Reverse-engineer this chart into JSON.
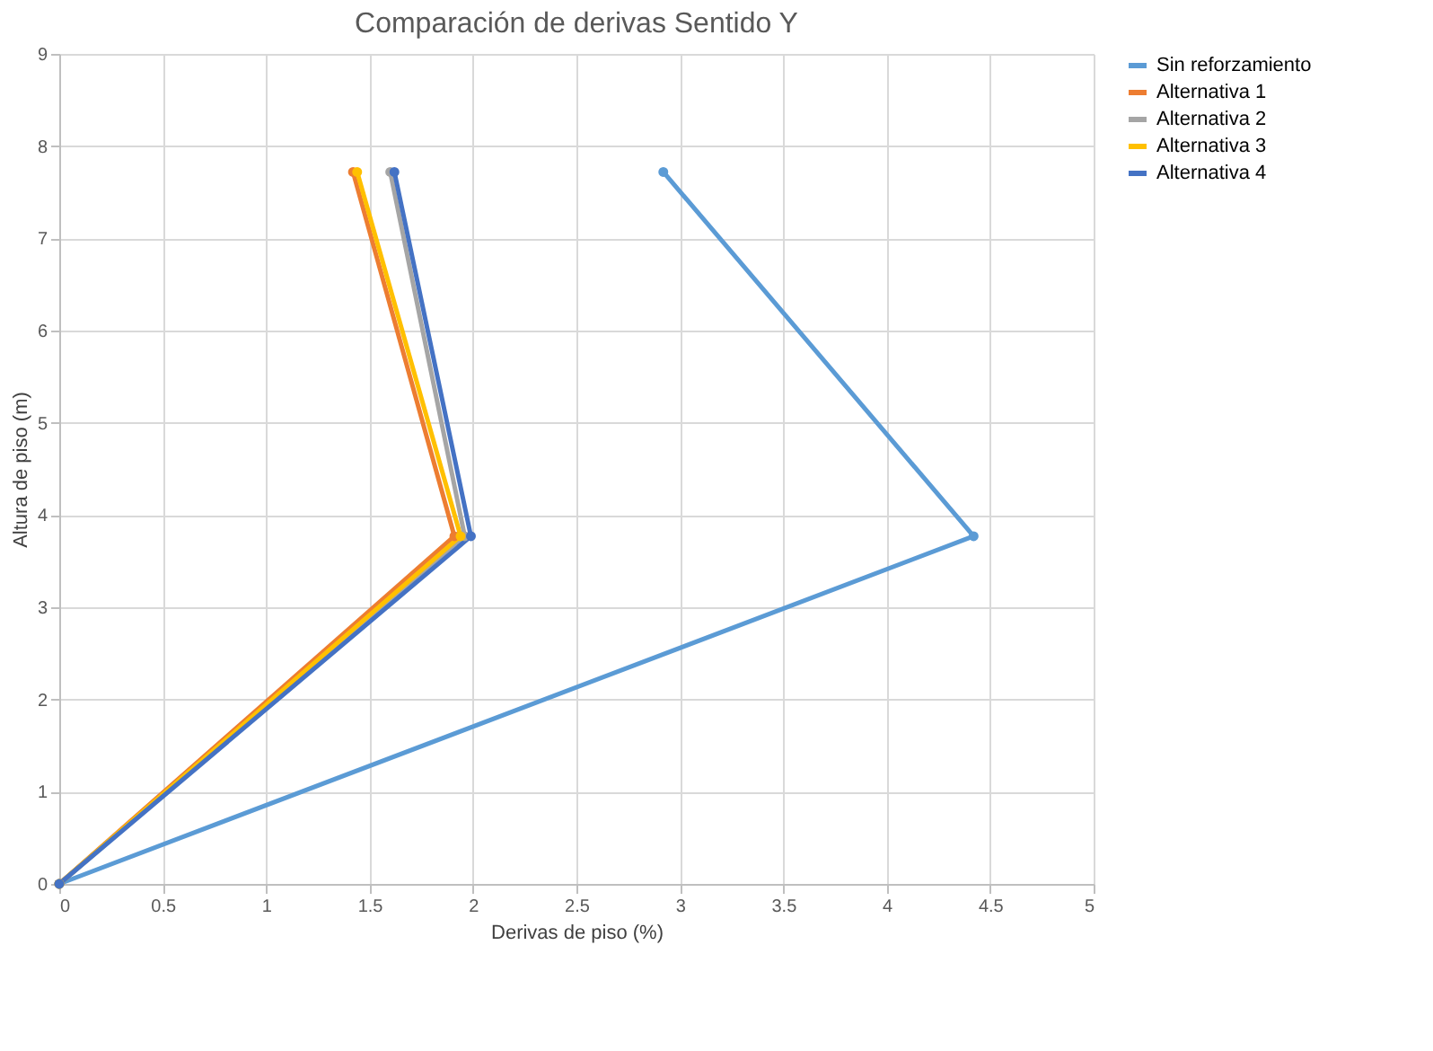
{
  "chart_data": {
    "type": "line",
    "title": "Comparación de derivas Sentido Y",
    "xlabel": "Derivas de piso (%)",
    "ylabel": "Altura de piso (m)",
    "xlim": [
      0,
      5
    ],
    "xticks": [
      0,
      0.5,
      1,
      1.5,
      2,
      2.5,
      3,
      3.5,
      4,
      4.5,
      5
    ],
    "ylim": [
      0,
      9
    ],
    "yticks": [
      0,
      1,
      2,
      3,
      4,
      5,
      6,
      7,
      8,
      9
    ],
    "grid": true,
    "legend": "right",
    "marker": "circle",
    "line_style": "solid",
    "series": [
      {
        "name": "Sin reforzamiento",
        "color": "#5b9bd5",
        "x": [
          0,
          4.42,
          2.92
        ],
        "values": [
          0,
          3.77,
          7.72
        ]
      },
      {
        "name": "Alternativa 1",
        "color": "#ed7d31",
        "x": [
          0,
          1.91,
          1.42
        ],
        "values": [
          0,
          3.77,
          7.72
        ]
      },
      {
        "name": "Alternativa 2",
        "color": "#a5a5a5",
        "x": [
          0,
          1.96,
          1.6
        ],
        "values": [
          0,
          3.77,
          7.72
        ]
      },
      {
        "name": "Alternativa 3",
        "color": "#ffc000",
        "x": [
          0,
          1.94,
          1.44
        ],
        "values": [
          0,
          3.77,
          7.72
        ]
      },
      {
        "name": "Alternativa 4",
        "color": "#4472c4",
        "x": [
          0,
          1.99,
          1.62
        ],
        "values": [
          0,
          3.77,
          7.72
        ]
      }
    ]
  }
}
